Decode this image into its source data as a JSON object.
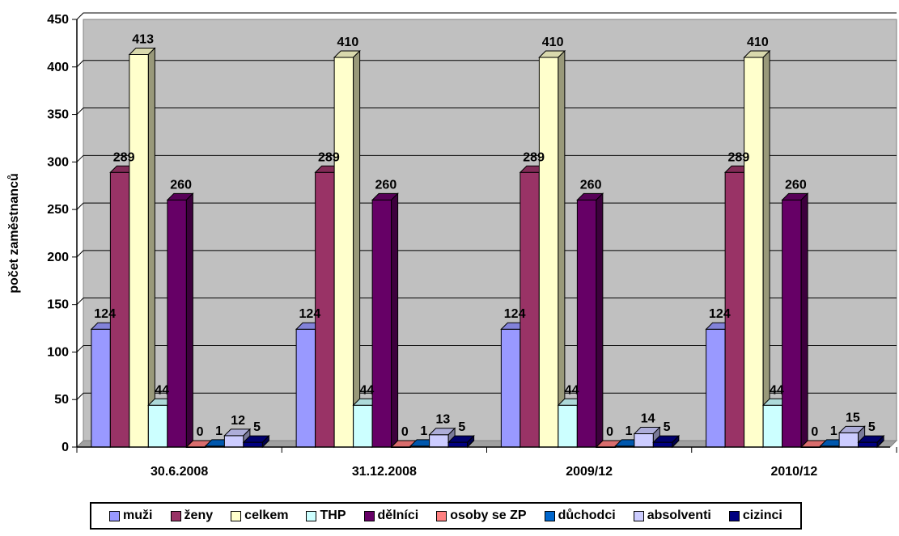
{
  "chart_data": {
    "type": "bar",
    "title": "",
    "xlabel": "",
    "ylabel": "počet zaměstnanců",
    "ylim": [
      0,
      450
    ],
    "yticks": [
      0,
      50,
      100,
      150,
      200,
      250,
      300,
      350,
      400,
      450
    ],
    "grid": true,
    "legend_position": "bottom",
    "categories": [
      "30.6.2008",
      "31.12.2008",
      "2009/12",
      "2010/12"
    ],
    "series": [
      {
        "name": "muži",
        "color": "#9999ff",
        "values": [
          124,
          124,
          124,
          124
        ]
      },
      {
        "name": "ženy",
        "color": "#993366",
        "values": [
          289,
          289,
          289,
          289
        ]
      },
      {
        "name": "celkem",
        "color": "#ffffcc",
        "values": [
          413,
          410,
          410,
          410
        ]
      },
      {
        "name": "THP",
        "color": "#ccffff",
        "values": [
          44,
          44,
          44,
          44
        ]
      },
      {
        "name": "dělníci",
        "color": "#660066",
        "values": [
          260,
          260,
          260,
          260
        ]
      },
      {
        "name": "osoby se ZP",
        "color": "#ff8080",
        "values": [
          0,
          0,
          0,
          0
        ]
      },
      {
        "name": "důchodci",
        "color": "#0066cc",
        "values": [
          1,
          1,
          1,
          1
        ]
      },
      {
        "name": "absolventi",
        "color": "#ccccff",
        "values": [
          12,
          13,
          14,
          15
        ]
      },
      {
        "name": "cizinci",
        "color": "#000080",
        "values": [
          5,
          5,
          5,
          5
        ]
      }
    ]
  }
}
